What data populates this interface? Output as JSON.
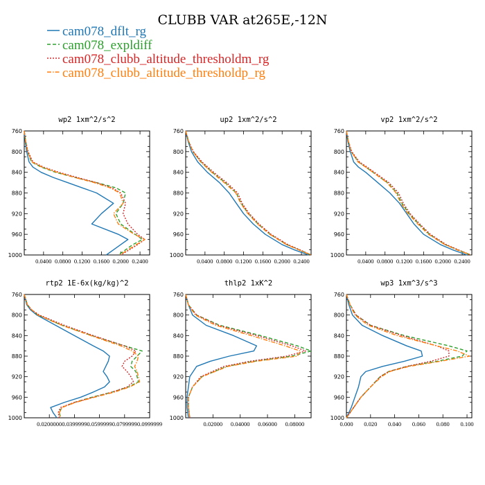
{
  "title": "CLUBB VAR at265E,-12N",
  "legend": [
    {
      "label": "cam078_dflt_rg",
      "color": "#1f77b4",
      "dash": "solid"
    },
    {
      "label": "cam078_expldiff",
      "color": "#2ca02c",
      "dash": "dash"
    },
    {
      "label": "cam078_clubb_altitude_thresholdm_rg",
      "color": "#d62728",
      "dash": "dot"
    },
    {
      "label": "cam078_clubb_altitude_thresholdp_rg",
      "color": "#ff7f0e",
      "dash": "dashdot"
    }
  ],
  "chart_data": [
    {
      "type": "line",
      "title": "wp2  1xm^2/s^2",
      "ylabel": "",
      "xlabel": "",
      "ylim": [
        760,
        1000
      ],
      "yticks": [
        "760",
        "800",
        "840",
        "880",
        "920",
        "960",
        "1000"
      ],
      "xlim": [
        0,
        0.26
      ],
      "xticks": [
        0.04,
        0.08,
        0.12,
        0.16,
        0.2,
        0.24
      ],
      "xtick_labels": [
        "0.0400",
        "0.0800",
        "0.1200",
        "0.1600",
        "0.2000",
        "0.2400"
      ],
      "y": [
        760,
        780,
        800,
        820,
        830,
        840,
        850,
        860,
        870,
        880,
        900,
        920,
        940,
        960,
        970,
        980,
        990,
        1000
      ],
      "series": [
        {
          "name": "cam078_dflt_rg",
          "values": [
            0.0,
            0.002,
            0.005,
            0.01,
            0.018,
            0.035,
            0.06,
            0.09,
            0.12,
            0.15,
            0.185,
            0.16,
            0.14,
            0.195,
            0.215,
            0.2,
            0.185,
            0.17
          ]
        },
        {
          "name": "cam078_expldiff",
          "values": [
            0.0,
            0.003,
            0.007,
            0.015,
            0.035,
            0.065,
            0.105,
            0.15,
            0.19,
            0.21,
            0.205,
            0.19,
            0.2,
            0.23,
            0.245,
            0.225,
            0.21,
            0.195
          ]
        },
        {
          "name": "cam078_clubb_altitude_thresholdm_rg",
          "values": [
            0.0,
            0.003,
            0.008,
            0.018,
            0.04,
            0.072,
            0.11,
            0.15,
            0.182,
            0.2,
            0.21,
            0.205,
            0.215,
            0.235,
            0.25,
            0.235,
            0.218,
            0.2
          ]
        },
        {
          "name": "cam078_clubb_altitude_thresholdp_rg",
          "values": [
            0.0,
            0.003,
            0.007,
            0.016,
            0.037,
            0.068,
            0.105,
            0.145,
            0.178,
            0.198,
            0.205,
            0.185,
            0.195,
            0.228,
            0.25,
            0.232,
            0.215,
            0.198
          ]
        }
      ]
    },
    {
      "type": "line",
      "title": "up2  1xm^2/s^2",
      "ylabel": "",
      "xlabel": "",
      "ylim": [
        760,
        1000
      ],
      "yticks": [
        "760",
        "800",
        "840",
        "880",
        "920",
        "960",
        "1000"
      ],
      "xlim": [
        0,
        0.26
      ],
      "xticks": [
        0.04,
        0.08,
        0.12,
        0.16,
        0.2,
        0.24
      ],
      "xtick_labels": [
        "0.0400",
        "0.0800",
        "0.1200",
        "0.1600",
        "0.2000",
        "0.2400"
      ],
      "y": [
        760,
        780,
        800,
        820,
        840,
        860,
        880,
        900,
        920,
        940,
        960,
        980,
        990,
        1000
      ],
      "series": [
        {
          "name": "cam078_dflt_rg",
          "values": [
            0.0,
            0.005,
            0.012,
            0.025,
            0.045,
            0.07,
            0.09,
            0.105,
            0.12,
            0.14,
            0.165,
            0.2,
            0.225,
            0.255
          ]
        },
        {
          "name": "cam078_expldiff",
          "values": [
            0.0,
            0.006,
            0.015,
            0.032,
            0.055,
            0.082,
            0.105,
            0.115,
            0.13,
            0.15,
            0.175,
            0.21,
            0.235,
            0.26
          ]
        },
        {
          "name": "cam078_clubb_altitude_thresholdm_rg",
          "values": [
            0.0,
            0.006,
            0.016,
            0.034,
            0.058,
            0.085,
            0.108,
            0.117,
            0.132,
            0.152,
            0.177,
            0.212,
            0.237,
            0.26
          ]
        },
        {
          "name": "cam078_clubb_altitude_thresholdp_rg",
          "values": [
            0.0,
            0.006,
            0.015,
            0.031,
            0.054,
            0.08,
            0.104,
            0.114,
            0.129,
            0.149,
            0.174,
            0.209,
            0.234,
            0.26
          ]
        }
      ]
    },
    {
      "type": "line",
      "title": "vp2  1xm^2/s^2",
      "ylabel": "",
      "xlabel": "",
      "ylim": [
        760,
        1000
      ],
      "yticks": [
        "760",
        "800",
        "840",
        "880",
        "920",
        "960",
        "1000"
      ],
      "xlim": [
        0,
        0.26
      ],
      "xticks": [
        0.04,
        0.08,
        0.12,
        0.16,
        0.2,
        0.24
      ],
      "xtick_labels": [
        "0.0400",
        "0.0800",
        "0.1200",
        "0.1600",
        "0.2000",
        "0.2400"
      ],
      "y": [
        760,
        780,
        800,
        820,
        830,
        840,
        860,
        880,
        900,
        920,
        940,
        960,
        980,
        990,
        1000
      ],
      "series": [
        {
          "name": "cam078_dflt_rg",
          "values": [
            0.0,
            0.003,
            0.008,
            0.015,
            0.025,
            0.04,
            0.065,
            0.09,
            0.11,
            0.125,
            0.14,
            0.16,
            0.195,
            0.22,
            0.25
          ]
        },
        {
          "name": "cam078_expldiff",
          "values": [
            0.0,
            0.004,
            0.01,
            0.025,
            0.04,
            0.055,
            0.085,
            0.105,
            0.115,
            0.13,
            0.15,
            0.172,
            0.205,
            0.23,
            0.258
          ]
        },
        {
          "name": "cam078_clubb_altitude_thresholdm_rg",
          "values": [
            0.0,
            0.004,
            0.011,
            0.027,
            0.043,
            0.058,
            0.088,
            0.108,
            0.118,
            0.132,
            0.152,
            0.174,
            0.207,
            0.232,
            0.258
          ]
        },
        {
          "name": "cam078_clubb_altitude_thresholdp_rg",
          "values": [
            0.0,
            0.004,
            0.01,
            0.024,
            0.04,
            0.055,
            0.084,
            0.103,
            0.113,
            0.128,
            0.148,
            0.17,
            0.204,
            0.229,
            0.258
          ]
        }
      ]
    },
    {
      "type": "line",
      "title": "rtp2  1E-6x(kg/kg)^2",
      "ylabel": "",
      "xlabel": "",
      "ylim": [
        760,
        1000
      ],
      "yticks": [
        "760",
        "800",
        "840",
        "880",
        "920",
        "960",
        "1000"
      ],
      "xlim": [
        0,
        1e-06
      ],
      "xticks": [
        2e-07,
        4e-07,
        6e-07,
        8e-07,
        1e-06
      ],
      "xtick_labels": [
        "0.0200000",
        "0.0399999",
        "0.0599999",
        "0.0799999",
        "0.0999999"
      ],
      "y": [
        760,
        780,
        790,
        800,
        820,
        840,
        860,
        870,
        880,
        890,
        900,
        910,
        920,
        930,
        940,
        950,
        960,
        970,
        980,
        990,
        1000
      ],
      "series": [
        {
          "name": "cam078_dflt_rg",
          "values": [
            0.0,
            2e-08,
            5e-08,
            1e-07,
            2.5e-07,
            4e-07,
            5.5e-07,
            6.3e-07,
            6.8e-07,
            6.7e-07,
            6.5e-07,
            6.3e-07,
            6.6e-07,
            6.8e-07,
            6.4e-07,
            5.5e-07,
            4.5e-07,
            3.2e-07,
            2.1e-07,
            2.3e-07,
            2.6e-07
          ]
        },
        {
          "name": "cam078_expldiff",
          "values": [
            0.0,
            2.5e-08,
            6e-08,
            1.1e-07,
            3e-07,
            5.4e-07,
            8e-07,
            9.4e-07,
            9e-07,
            8.6e-07,
            8.5e-07,
            8.9e-07,
            9e-07,
            9.1e-07,
            8.3e-07,
            7e-07,
            5.4e-07,
            4e-07,
            3e-07,
            2.8e-07,
            2.9e-07
          ]
        },
        {
          "name": "cam078_clubb_altitude_thresholdm_rg",
          "values": [
            0.0,
            2.5e-08,
            6e-08,
            1.2e-07,
            3.2e-07,
            5.5e-07,
            8e-07,
            8.9e-07,
            8.6e-07,
            8e-07,
            7.8e-07,
            8.2e-07,
            8.5e-07,
            8.7e-07,
            8.2e-07,
            7e-07,
            5.5e-07,
            4e-07,
            2.9e-07,
            2.7e-07,
            2.8e-07
          ]
        },
        {
          "name": "cam078_clubb_altitude_thresholdp_rg",
          "values": [
            0.0,
            2.5e-08,
            6e-08,
            1.1e-07,
            3e-07,
            5.3e-07,
            7.7e-07,
            8.6e-07,
            9.1e-07,
            9e-07,
            8.8e-07,
            9e-07,
            9.1e-07,
            9.2e-07,
            8.4e-07,
            7.2e-07,
            5.6e-07,
            4.1e-07,
            3e-07,
            2.8e-07,
            2.9e-07
          ]
        }
      ]
    },
    {
      "type": "line",
      "title": "thlp2  1xK^2",
      "ylabel": "",
      "xlabel": "",
      "ylim": [
        760,
        1000
      ],
      "yticks": [
        "760",
        "800",
        "840",
        "880",
        "920",
        "960",
        "1000"
      ],
      "xlim": [
        0,
        0.092
      ],
      "xticks": [
        0.02,
        0.04,
        0.06,
        0.08
      ],
      "xtick_labels": [
        "0.02000",
        "0.04000",
        "0.06000",
        "0.08000"
      ],
      "y": [
        760,
        780,
        800,
        820,
        840,
        860,
        870,
        880,
        890,
        900,
        920,
        940,
        960,
        980,
        1000
      ],
      "series": [
        {
          "name": "cam078_dflt_rg",
          "values": [
            0.0,
            0.002,
            0.005,
            0.015,
            0.035,
            0.052,
            0.05,
            0.032,
            0.018,
            0.008,
            0.003,
            0.002,
            0.001,
            0.001,
            0.002
          ]
        },
        {
          "name": "cam078_expldiff",
          "values": [
            0.0,
            0.002,
            0.008,
            0.025,
            0.055,
            0.082,
            0.092,
            0.078,
            0.05,
            0.03,
            0.012,
            0.005,
            0.002,
            0.002,
            0.003
          ]
        },
        {
          "name": "cam078_clubb_altitude_thresholdm_rg",
          "values": [
            0.0,
            0.002,
            0.008,
            0.024,
            0.052,
            0.078,
            0.088,
            0.074,
            0.047,
            0.028,
            0.011,
            0.005,
            0.002,
            0.002,
            0.003
          ]
        },
        {
          "name": "cam078_clubb_altitude_thresholdp_rg",
          "values": [
            0.0,
            0.002,
            0.007,
            0.022,
            0.048,
            0.073,
            0.084,
            0.082,
            0.052,
            0.031,
            0.012,
            0.005,
            0.002,
            0.002,
            0.003
          ]
        }
      ]
    },
    {
      "type": "line",
      "title": "wp3  1xm^3/s^3",
      "ylabel": "",
      "xlabel": "",
      "ylim": [
        760,
        1000
      ],
      "yticks": [
        "760",
        "800",
        "840",
        "880",
        "920",
        "960",
        "1000"
      ],
      "xlim": [
        0,
        0.104
      ],
      "xticks": [
        0,
        0.02,
        0.04,
        0.06,
        0.08,
        0.1
      ],
      "xtick_labels": [
        "0.000",
        "0.020",
        "0.040",
        "0.060",
        "0.080",
        "0.100"
      ],
      "y": [
        760,
        780,
        800,
        820,
        840,
        860,
        870,
        880,
        890,
        900,
        910,
        920,
        940,
        960,
        980,
        1000
      ],
      "series": [
        {
          "name": "cam078_dflt_rg",
          "values": [
            0.0,
            0.002,
            0.005,
            0.013,
            0.03,
            0.05,
            0.062,
            0.063,
            0.048,
            0.03,
            0.016,
            0.012,
            0.01,
            0.007,
            0.004,
            0.0
          ]
        },
        {
          "name": "cam078_expldiff",
          "values": [
            0.0,
            0.003,
            0.008,
            0.02,
            0.048,
            0.085,
            0.1,
            0.096,
            0.075,
            0.05,
            0.035,
            0.028,
            0.02,
            0.012,
            0.006,
            0.0
          ]
        },
        {
          "name": "cam078_clubb_altitude_thresholdm_rg",
          "values": [
            0.0,
            0.003,
            0.008,
            0.02,
            0.046,
            0.075,
            0.085,
            0.085,
            0.07,
            0.05,
            0.035,
            0.028,
            0.02,
            0.012,
            0.006,
            0.0
          ]
        },
        {
          "name": "cam078_clubb_altitude_thresholdp_rg",
          "values": [
            0.0,
            0.003,
            0.007,
            0.018,
            0.042,
            0.075,
            0.092,
            0.102,
            0.078,
            0.052,
            0.036,
            0.029,
            0.02,
            0.012,
            0.006,
            0.0
          ]
        }
      ]
    }
  ]
}
